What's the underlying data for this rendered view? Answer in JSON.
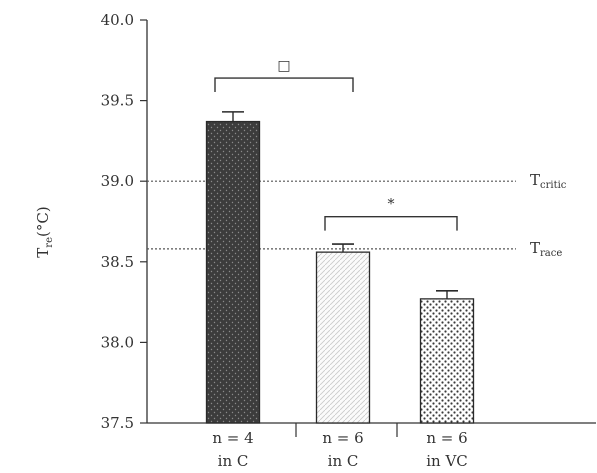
{
  "chart_data": {
    "type": "bar",
    "title": "",
    "xlabel": "",
    "ylabel": "T",
    "ylabel_sub": "re",
    "ylabel_unit": "(°C)",
    "ylim": [
      37.5,
      40.0
    ],
    "yticks": [
      "37.5",
      "38.0",
      "38.5",
      "39.0",
      "39.5",
      "40.0"
    ],
    "grid": false,
    "categories": [
      {
        "line1": "n = 4",
        "line2": "in C"
      },
      {
        "line1": "n = 6",
        "line2": "in C"
      },
      {
        "line1": "n = 6",
        "line2": "in VC"
      }
    ],
    "values": [
      39.37,
      38.56,
      38.27
    ],
    "errors": [
      0.06,
      0.05,
      0.05
    ],
    "bar_styles": [
      "dark",
      "light-hatch",
      "stipple"
    ],
    "reference_lines": [
      {
        "base": "T",
        "sub": "critic",
        "value": 39.0
      },
      {
        "base": "T",
        "sub": "race",
        "value": 38.58
      }
    ],
    "significance": [
      {
        "from": 0,
        "to": 1,
        "label": "□",
        "bracket_y": 39.64
      },
      {
        "from": 1,
        "to": 2,
        "label": "*",
        "bracket_y": 38.78
      }
    ],
    "colors": {
      "axis": "#333333",
      "dark_bar": "#3c3c3c",
      "light_bar": "#ffffff",
      "ref_line": "#555555"
    }
  }
}
